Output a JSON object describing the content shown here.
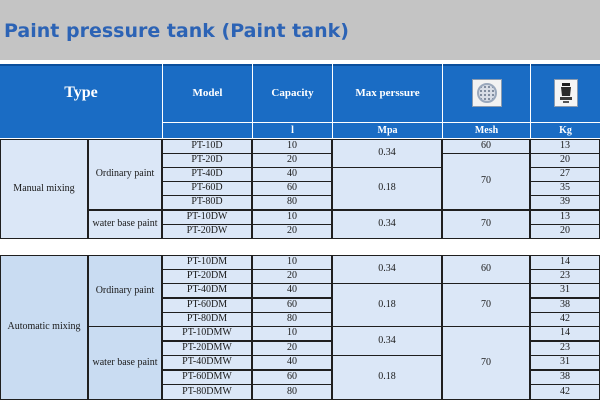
{
  "title": "Paint pressure tank (Paint tank)",
  "header": {
    "type": "Type",
    "model": "Model",
    "capacity": "Capacity",
    "max_pressure": "Max perssure",
    "mesh_icon": "mesh-filter-icon",
    "kg_icon": "tank-weight-icon",
    "units": {
      "capacity": "l",
      "pressure": "Mpa",
      "mesh": "Mesh",
      "kg": "Kg"
    }
  },
  "manual": {
    "label": "Manual mixing",
    "ordinary_label": "Ordinary paint",
    "water_label": "water base paint",
    "rows": [
      {
        "model": "PT-10D",
        "capacity": "10",
        "kg": "13"
      },
      {
        "model": "PT-20D",
        "capacity": "20",
        "kg": "20"
      },
      {
        "model": "PT-40D",
        "capacity": "40",
        "kg": "27"
      },
      {
        "model": "PT-60D",
        "capacity": "60",
        "kg": "35"
      },
      {
        "model": "PT-80D",
        "capacity": "80",
        "kg": "39"
      },
      {
        "model": "PT-10DW",
        "capacity": "10",
        "kg": "13"
      },
      {
        "model": "PT-20DW",
        "capacity": "20",
        "kg": "20"
      }
    ],
    "pressure": [
      "0.34",
      "0.18",
      "0.34"
    ],
    "mesh": [
      "60",
      "70",
      "70"
    ]
  },
  "automatic": {
    "label": "Automatic mixing",
    "ordinary_label": "Ordinary paint",
    "water_label": "water base paint",
    "rows": [
      {
        "model": "PT-10DM",
        "capacity": "10",
        "kg": "14"
      },
      {
        "model": "PT-20DM",
        "capacity": "20",
        "kg": "23"
      },
      {
        "model": "PT-40DM",
        "capacity": "40",
        "kg": "31"
      },
      {
        "model": "PT-60DM",
        "capacity": "60",
        "kg": "38"
      },
      {
        "model": "PT-80DM",
        "capacity": "80",
        "kg": "42"
      },
      {
        "model": "PT-10DMW",
        "capacity": "10",
        "kg": "14"
      },
      {
        "model": "PT-20DMW",
        "capacity": "20",
        "kg": "23"
      },
      {
        "model": "PT-40DMW",
        "capacity": "40",
        "kg": "31"
      },
      {
        "model": "PT-60DMW",
        "capacity": "60",
        "kg": "38"
      },
      {
        "model": "PT-80DMW",
        "capacity": "80",
        "kg": "42"
      }
    ],
    "pressure": [
      "0.34",
      "0.18",
      "0.34",
      "0.18"
    ],
    "mesh": [
      "60",
      "70",
      "70"
    ]
  },
  "colors": {
    "title": "#2c63b5",
    "header_bg": "#1a6cc4",
    "cell_bg": "#dbe7f7"
  }
}
